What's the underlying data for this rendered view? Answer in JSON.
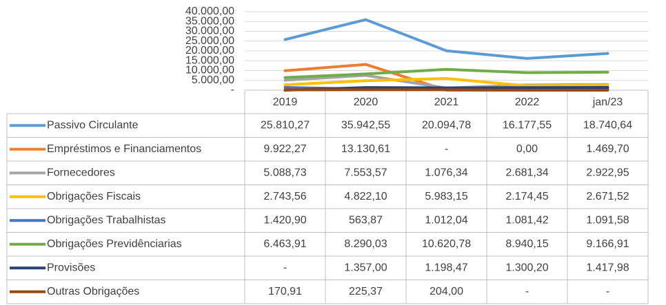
{
  "chart_data": {
    "type": "line",
    "categories": [
      "2019",
      "2020",
      "2021",
      "2022",
      "jan/23"
    ],
    "ylim": [
      0,
      40000
    ],
    "yticks": [
      {
        "value": 0,
        "label": "-"
      },
      {
        "value": 5000,
        "label": "5.000,00"
      },
      {
        "value": 10000,
        "label": "10.000,00"
      },
      {
        "value": 15000,
        "label": "15.000,00"
      },
      {
        "value": 20000,
        "label": "20.000,00"
      },
      {
        "value": 25000,
        "label": "25.000,00"
      },
      {
        "value": 30000,
        "label": "30.000,00"
      },
      {
        "value": 35000,
        "label": "35.000,00"
      },
      {
        "value": 40000,
        "label": "40.000,00"
      }
    ],
    "grid": true,
    "series": [
      {
        "name": "Passivo Circulante",
        "color": "#5b9bd5",
        "values": [
          25810.27,
          35942.55,
          20094.78,
          16177.55,
          18740.64
        ],
        "value_labels": [
          "25.810,27",
          "35.942,55",
          "20.094,78",
          "16.177,55",
          "18.740,64"
        ]
      },
      {
        "name": "Empréstimos e Financiamentos",
        "color": "#ed7d31",
        "values": [
          9922.27,
          13130.61,
          0,
          0,
          1469.7
        ],
        "value_labels": [
          "9.922,27",
          "13.130,61",
          "-",
          "0,00",
          "1.469,70"
        ]
      },
      {
        "name": "Fornecedores",
        "color": "#a5a5a5",
        "values": [
          5088.73,
          7553.57,
          1076.34,
          2681.34,
          2922.95
        ],
        "value_labels": [
          "5.088,73",
          "7.553,57",
          "1.076,34",
          "2.681,34",
          "2.922,95"
        ]
      },
      {
        "name": "Obrigações Fiscais",
        "color": "#ffc000",
        "values": [
          2743.56,
          4822.1,
          5983.15,
          2174.45,
          2671.52
        ],
        "value_labels": [
          "2.743,56",
          "4.822,10",
          "5.983,15",
          "2.174,45",
          "2.671,52"
        ]
      },
      {
        "name": "Obrigações Trabalhistas",
        "color": "#4472c4",
        "values": [
          1420.9,
          563.87,
          1012.04,
          1081.42,
          1091.58
        ],
        "value_labels": [
          "1.420,90",
          "563,87",
          "1.012,04",
          "1.081,42",
          "1.091,58"
        ]
      },
      {
        "name": "Obrigações Previdênciarias",
        "color": "#70ad47",
        "values": [
          6463.91,
          8290.03,
          10620.78,
          8940.15,
          9166.91
        ],
        "value_labels": [
          "6.463,91",
          "8.290,03",
          "10.620,78",
          "8.940,15",
          "9.166,91"
        ]
      },
      {
        "name": "Provisões",
        "color": "#264478",
        "values": [
          0,
          1357.0,
          1198.47,
          1300.2,
          1417.98
        ],
        "value_labels": [
          "-",
          "1.357,00",
          "1.198,47",
          "1.300,20",
          "1.417,98"
        ]
      },
      {
        "name": "Outras Obrigações",
        "color": "#9e480e",
        "values": [
          170.91,
          225.37,
          204.0,
          0,
          0
        ],
        "value_labels": [
          "170,91",
          "225,37",
          "204,00",
          "-",
          "-"
        ]
      }
    ]
  }
}
